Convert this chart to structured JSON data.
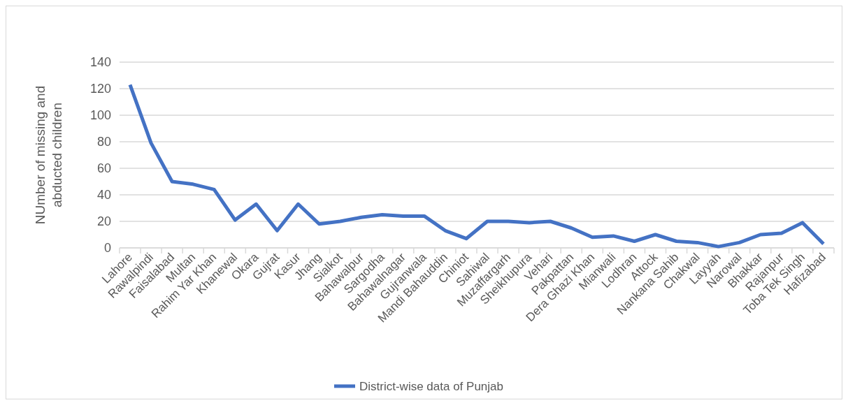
{
  "chart_data": {
    "type": "line",
    "ylabel": "NUmber of missing and abducted children",
    "categories": [
      "Lahore",
      "Rawalpindi",
      "Faisalabad",
      "Multan",
      "Rahim Yar Khan",
      "Khanewal",
      "Okara",
      "Gujrat",
      "Kasur",
      "Jhang",
      "Sialkot",
      "Bahawalpur",
      "Sargodha",
      "Bahawalnagar",
      "Gujranwala",
      "Mandi Bahauddin",
      "Chiniot",
      "Sahiwal",
      "Muzaffargarh",
      "Sheikhupura",
      "Vehari",
      "Pakpattan",
      "Dera Ghazi Khan",
      "Mianwali",
      "Lodhran",
      "Attock",
      "Nankana Sahib",
      "Chakwal",
      "Layyah",
      "Narowal",
      "Bhakkar",
      "Rajanpur",
      "Toba Tek Singh",
      "Hafizabad"
    ],
    "series": [
      {
        "name": "District-wise data  of Punjab",
        "color": "#4472c4",
        "values": [
          123,
          79,
          50,
          48,
          44,
          21,
          33,
          13,
          33,
          18,
          20,
          23,
          25,
          24,
          24,
          13,
          7,
          20,
          20,
          19,
          20,
          15,
          8,
          9,
          5,
          10,
          5,
          4,
          1,
          4,
          10,
          11,
          19,
          3
        ]
      }
    ],
    "ylim": [
      0,
      140
    ],
    "yticks": [
      0,
      20,
      40,
      60,
      80,
      100,
      120,
      140
    ],
    "grid": "y",
    "legend": "bottom",
    "marker": "none",
    "line_style": "solid"
  }
}
